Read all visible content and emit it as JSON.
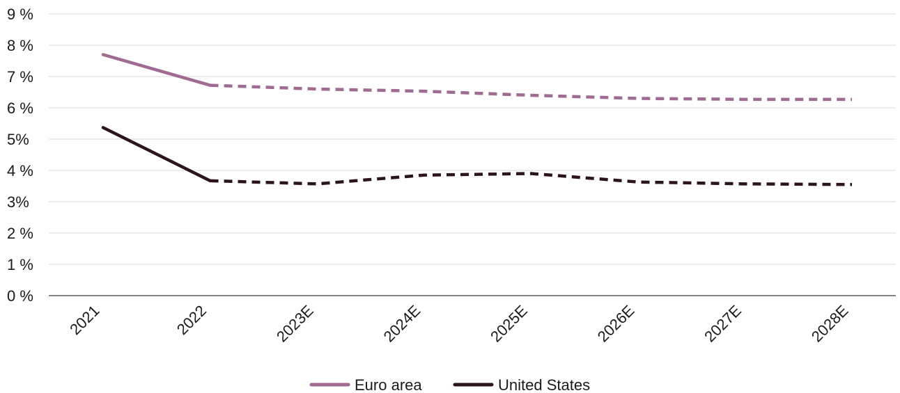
{
  "chart_data": {
    "type": "line",
    "title": "",
    "xlabel": "",
    "ylabel": "",
    "categories": [
      "2021",
      "2022",
      "2023E",
      "2024E",
      "2025E",
      "2026E",
      "2027E",
      "2028E"
    ],
    "ylim": [
      0,
      9
    ],
    "yticks": [
      0,
      1,
      2,
      3,
      4,
      5,
      6,
      7,
      8,
      9
    ],
    "ytick_labels": [
      "0 %",
      "1 %",
      "2 %",
      "3%",
      "4 %",
      "5%",
      "6 %",
      "7 %",
      "8 %",
      "9 %"
    ],
    "grid": true,
    "legend_position": "bottom",
    "actual_through": "2022",
    "forecast_style": "dashed",
    "series": [
      {
        "name": "Euro area",
        "color": "#a06b92",
        "values": [
          7.7,
          6.72,
          6.6,
          6.53,
          6.4,
          6.3,
          6.27,
          6.27
        ]
      },
      {
        "name": "United States",
        "color": "#2c1320",
        "values": [
          5.37,
          3.67,
          3.57,
          3.85,
          3.9,
          3.63,
          3.57,
          3.55
        ]
      }
    ]
  }
}
